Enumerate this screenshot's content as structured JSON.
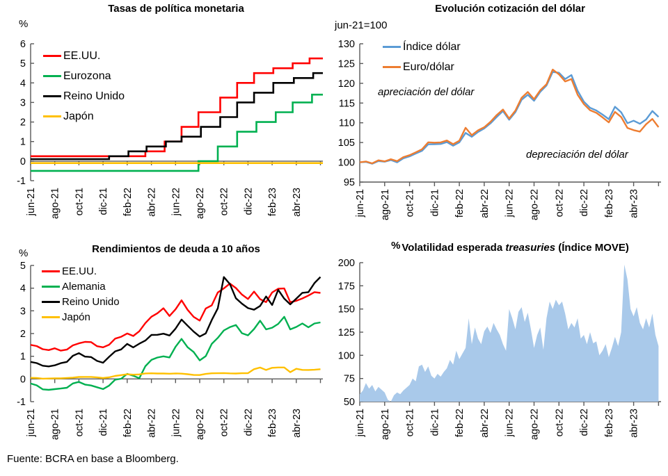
{
  "page": {
    "footer": "Fuente: BCRA en base a Bloomberg."
  },
  "colors": {
    "red": "#FF0000",
    "green": "#00B050",
    "black": "#000000",
    "yellow": "#FFC000",
    "blue": "#5B9BD5",
    "orange": "#ED7D31",
    "area_blue": "#A9C9EA",
    "axis": "#595959"
  },
  "x_axis": {
    "tick_labels": [
      "jun-21",
      "ago-21",
      "oct-21",
      "dic-21",
      "feb-22",
      "abr-22",
      "jun-22",
      "ago-22",
      "oct-22",
      "dic-22",
      "feb-23",
      "abr-23"
    ],
    "label_months": [
      0,
      2,
      4,
      6,
      8,
      10,
      12,
      14,
      16,
      18,
      20,
      22
    ],
    "tick_months": [
      0,
      2,
      4,
      6,
      8,
      10,
      12,
      14,
      16,
      18,
      20,
      22,
      24
    ],
    "span": 24.2
  },
  "chart_data": [
    {
      "id": "policy-rates",
      "type": "step",
      "title": "Tasas de política monetaria",
      "unit": "%",
      "ylim": [
        -1,
        6
      ],
      "yticks": [
        6,
        5,
        4,
        3,
        2,
        1,
        0,
        -1
      ],
      "x_axis_at": 0,
      "series": [
        {
          "name": "EE.UU.",
          "color": "#FF0000",
          "points": [
            [
              0,
              0.25
            ],
            [
              9.5,
              0.5
            ],
            [
              11.1,
              1.0
            ],
            [
              12.5,
              1.75
            ],
            [
              13.9,
              2.5
            ],
            [
              15.7,
              3.25
            ],
            [
              17.1,
              4.0
            ],
            [
              18.5,
              4.5
            ],
            [
              20.1,
              4.75
            ],
            [
              21.7,
              5.0
            ],
            [
              23.1,
              5.25
            ]
          ]
        },
        {
          "name": "Eurozona",
          "color": "#00B050",
          "points": [
            [
              0,
              -0.5
            ],
            [
              13.9,
              0.0
            ],
            [
              15.5,
              0.75
            ],
            [
              17.1,
              1.5
            ],
            [
              18.7,
              2.0
            ],
            [
              20.3,
              2.5
            ],
            [
              21.7,
              3.0
            ],
            [
              23.3,
              3.4
            ]
          ]
        },
        {
          "name": "Reino Unido",
          "color": "#000000",
          "points": [
            [
              0,
              0.1
            ],
            [
              6.5,
              0.25
            ],
            [
              8.1,
              0.5
            ],
            [
              9.6,
              0.75
            ],
            [
              11.2,
              1.0
            ],
            [
              12.5,
              1.25
            ],
            [
              14.1,
              1.75
            ],
            [
              15.7,
              2.25
            ],
            [
              17.1,
              3.0
            ],
            [
              18.5,
              3.5
            ],
            [
              20.1,
              4.0
            ],
            [
              21.8,
              4.25
            ],
            [
              23.4,
              4.5
            ]
          ]
        },
        {
          "name": "Japón",
          "color": "#FFC000",
          "points": [
            [
              0,
              -0.1
            ]
          ]
        }
      ]
    },
    {
      "id": "dollar",
      "type": "line",
      "title": "Evolución cotización del dólar",
      "unit": "jun-21=100",
      "ylim": [
        95,
        130
      ],
      "yticks": [
        130,
        125,
        120,
        115,
        110,
        105,
        100,
        95
      ],
      "x_axis_at": 95,
      "step": 0.5,
      "annotations": [
        "apreciación del dólar",
        "depreciación del dólar"
      ],
      "series": [
        {
          "name": "Índice dólar",
          "color": "#5B9BD5",
          "wiggle": 0.35,
          "values": [
            100.0,
            100.1,
            99.9,
            100.3,
            99.8,
            100.6,
            100.2,
            101.0,
            101.6,
            102.2,
            102.6,
            104.6,
            104.9,
            104.6,
            105.0,
            104.2,
            104.9,
            107.5,
            106.8,
            107.6,
            108.3,
            109.9,
            111.5,
            113.0,
            111.0,
            112.6,
            115.5,
            117.2,
            115.8,
            117.8,
            119.5,
            122.8,
            122.4,
            121.2,
            122.4,
            118.0,
            115.2,
            113.8,
            113.0,
            112.2,
            111.2,
            113.9,
            112.4,
            110.0,
            110.6,
            109.8,
            111.0,
            112.8,
            111.2
          ]
        },
        {
          "name": "Euro/dólar",
          "color": "#ED7D31",
          "wiggle": 0.35,
          "values": [
            100.0,
            100.2,
            100.0,
            100.5,
            99.9,
            100.8,
            100.5,
            101.3,
            101.9,
            102.5,
            103.0,
            105.1,
            105.3,
            105.0,
            105.4,
            104.6,
            105.3,
            108.8,
            107.2,
            108.0,
            108.6,
            110.3,
            112.0,
            113.4,
            111.3,
            113.0,
            116.0,
            117.9,
            116.2,
            118.2,
            119.8,
            123.4,
            122.0,
            120.6,
            121.4,
            117.0,
            114.6,
            113.2,
            112.4,
            111.5,
            110.4,
            112.6,
            111.2,
            108.8,
            108.2,
            107.8,
            109.8,
            110.8,
            108.6
          ]
        }
      ]
    },
    {
      "id": "yields",
      "type": "line",
      "title": "Rendimientos de deuda a 10 años",
      "unit": "%",
      "ylim": [
        -1,
        5
      ],
      "yticks": [
        5,
        4,
        3,
        2,
        1,
        0,
        -1
      ],
      "x_axis_at": 0,
      "step": 0.5,
      "series": [
        {
          "name": "EE.UU.",
          "color": "#FF0000",
          "wiggle": 0.05,
          "values": [
            1.5,
            1.45,
            1.35,
            1.27,
            1.3,
            1.25,
            1.32,
            1.48,
            1.58,
            1.63,
            1.58,
            1.45,
            1.44,
            1.5,
            1.76,
            1.86,
            1.98,
            1.9,
            2.15,
            2.45,
            2.7,
            2.9,
            3.12,
            2.78,
            3.1,
            3.45,
            3.0,
            2.75,
            2.6,
            3.1,
            3.25,
            3.8,
            3.95,
            4.22,
            4.05,
            3.7,
            3.5,
            3.85,
            3.5,
            3.4,
            3.85,
            3.95,
            3.95,
            3.4,
            3.45,
            3.55,
            3.7,
            3.8,
            3.75
          ]
        },
        {
          "name": "Alemania",
          "color": "#00B050",
          "wiggle": 0.05,
          "values": [
            -0.2,
            -0.28,
            -0.42,
            -0.48,
            -0.5,
            -0.42,
            -0.36,
            -0.2,
            -0.12,
            -0.25,
            -0.33,
            -0.36,
            -0.4,
            -0.3,
            -0.05,
            0.01,
            0.2,
            0.15,
            0.08,
            0.55,
            0.8,
            0.95,
            1.0,
            0.95,
            1.45,
            1.75,
            1.35,
            1.2,
            0.85,
            1.0,
            1.55,
            1.8,
            2.1,
            2.3,
            2.42,
            2.0,
            1.9,
            2.2,
            2.55,
            2.2,
            2.3,
            2.4,
            2.7,
            2.2,
            2.3,
            2.45,
            2.3,
            2.42,
            2.45
          ]
        },
        {
          "name": "Reino Unido",
          "color": "#000000",
          "wiggle": 0.05,
          "values": [
            0.75,
            0.7,
            0.62,
            0.55,
            0.55,
            0.7,
            0.78,
            1.02,
            1.15,
            0.98,
            0.92,
            0.8,
            0.76,
            0.97,
            1.2,
            1.3,
            1.52,
            1.4,
            1.6,
            1.68,
            1.9,
            1.95,
            2.0,
            1.92,
            2.25,
            2.6,
            2.3,
            2.1,
            1.9,
            2.0,
            2.6,
            3.1,
            4.45,
            4.2,
            3.6,
            3.3,
            3.1,
            3.05,
            3.2,
            3.65,
            3.3,
            3.9,
            3.5,
            3.3,
            3.55,
            3.8,
            3.85,
            4.2,
            4.45
          ]
        },
        {
          "name": "Japón",
          "color": "#FFC000",
          "wiggle": 0.01,
          "values": [
            0.05,
            0.04,
            0.02,
            0.02,
            0.02,
            0.03,
            0.05,
            0.06,
            0.09,
            0.09,
            0.08,
            0.07,
            0.05,
            0.07,
            0.13,
            0.17,
            0.2,
            0.19,
            0.21,
            0.24,
            0.24,
            0.24,
            0.24,
            0.23,
            0.25,
            0.23,
            0.2,
            0.18,
            0.18,
            0.22,
            0.25,
            0.25,
            0.25,
            0.25,
            0.25,
            0.25,
            0.25,
            0.43,
            0.5,
            0.4,
            0.5,
            0.5,
            0.5,
            0.3,
            0.45,
            0.4,
            0.4,
            0.4,
            0.42
          ]
        }
      ]
    },
    {
      "id": "move",
      "type": "area",
      "title_unit": "%",
      "title_prefix": "Volatilidad esperada ",
      "title_italic": "treasuries",
      "title_suffix": " (Índice MOVE)",
      "ylim": [
        50,
        200
      ],
      "yticks": [
        200,
        175,
        150,
        125,
        100,
        75,
        50
      ],
      "x_axis_at": 50,
      "step": 0.25,
      "series": [
        {
          "name": "Índice MOVE",
          "color": "#A9C9EA",
          "values": [
            58,
            62,
            70,
            64,
            68,
            61,
            66,
            63,
            60,
            52,
            50,
            57,
            60,
            58,
            62,
            65,
            68,
            75,
            72,
            88,
            90,
            82,
            88,
            78,
            75,
            80,
            77,
            82,
            86,
            95,
            90,
            105,
            96,
            102,
            108,
            140,
            112,
            130,
            118,
            112,
            126,
            131,
            124,
            135,
            128,
            122,
            112,
            105,
            150,
            140,
            128,
            147,
            152,
            136,
            146,
            128,
            108,
            122,
            130,
            106,
            140,
            158,
            150,
            160,
            154,
            158,
            145,
            128,
            135,
            130,
            140,
            118,
            122,
            112,
            125,
            113,
            115,
            100,
            105,
            112,
            98,
            108,
            120,
            110,
            125,
            198,
            182,
            150,
            142,
            152,
            135,
            128,
            140,
            130,
            145,
            122,
            110
          ]
        }
      ]
    }
  ]
}
